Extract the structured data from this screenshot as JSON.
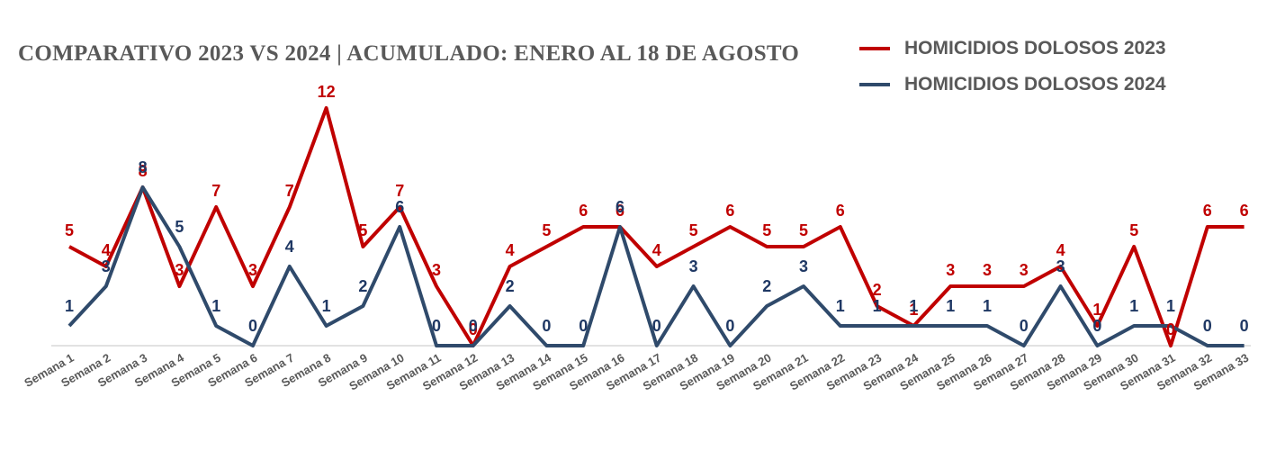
{
  "chart_data": {
    "type": "line",
    "title": "COMPARATIVO 2023 VS 2024 | ACUMULADO: ENERO AL 18 DE AGOSTO",
    "xlabel": "",
    "ylabel": "",
    "ylim": [
      0,
      12
    ],
    "grid": false,
    "legend_position": "top-right",
    "categories": [
      "Semana 1",
      "Semana 2",
      "Semana 3",
      "Semana 4",
      "Semana 5",
      "Semana 6",
      "Semana 7",
      "Semana 8",
      "Semana 9",
      "Semana 10",
      "Semana 11",
      "Semana 12",
      "Semana 13",
      "Semana 14",
      "Semana 15",
      "Semana 16",
      "Semana 17",
      "Semana 18",
      "Semana 19",
      "Semana 20",
      "Semana 21",
      "Semana 22",
      "Semana 23",
      "Semana 24",
      "Semana 25",
      "Semana 26",
      "Semana 27",
      "Semana 28",
      "Semana 29",
      "Semana 30",
      "Semana 31",
      "Semana 32",
      "Semana 33"
    ],
    "series": [
      {
        "name": "HOMICIDIOS DOLOSOS 2023",
        "color": "#c00000",
        "values": [
          5,
          4,
          8,
          3,
          7,
          3,
          7,
          12,
          5,
          7,
          3,
          0,
          4,
          5,
          6,
          6,
          4,
          5,
          6,
          5,
          5,
          6,
          2,
          1,
          3,
          3,
          3,
          4,
          1,
          5,
          0,
          6,
          6
        ]
      },
      {
        "name": "HOMICIDIOS DOLOSOS 2024",
        "color": "#2f4a6b",
        "label_color": "#1f3864",
        "values": [
          1,
          3,
          8,
          5,
          1,
          0,
          4,
          1,
          2,
          6,
          0,
          0,
          2,
          0,
          0,
          6,
          0,
          3,
          0,
          2,
          3,
          1,
          1,
          1,
          1,
          1,
          0,
          3,
          0,
          1,
          1,
          0,
          0
        ]
      }
    ]
  }
}
